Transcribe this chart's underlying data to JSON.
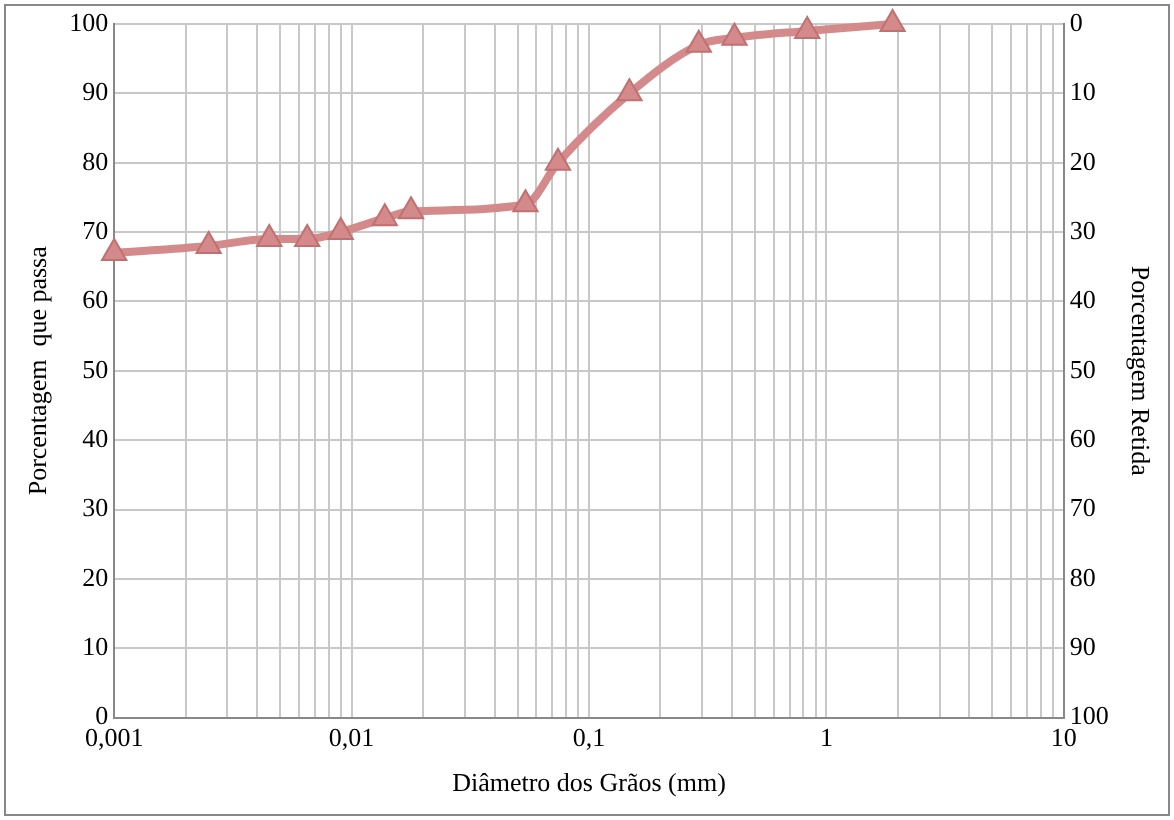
{
  "chart_data": {
    "type": "line",
    "xlabel": "Diâmetro dos Grãos (mm)",
    "ylabel": "Porcentagem  que passa",
    "y2label": "Porcentagem Retida",
    "x": [
      0.001,
      0.0025,
      0.0045,
      0.0065,
      0.009,
      0.0138,
      0.0178,
      0.054,
      0.074,
      0.148,
      0.29,
      0.41,
      0.83,
      1.9
    ],
    "series": [
      {
        "color": "#d48a8a",
        "values": [
          67,
          68,
          69,
          69,
          70,
          72,
          73,
          74,
          80,
          90,
          97,
          98,
          99,
          100
        ]
      }
    ],
    "log": "x",
    "xlim": [
      0.001,
      10
    ],
    "xticks": [
      {
        "value": 0.001,
        "label": "0,001"
      },
      {
        "value": 0.002,
        "label": null
      },
      {
        "value": 0.003,
        "label": null
      },
      {
        "value": 0.004,
        "label": null
      },
      {
        "value": 0.005,
        "label": null
      },
      {
        "value": 0.006,
        "label": null
      },
      {
        "value": 0.007,
        "label": null
      },
      {
        "value": 0.008,
        "label": null
      },
      {
        "value": 0.009,
        "label": null
      },
      {
        "value": 0.01,
        "label": "0,01"
      },
      {
        "value": 0.02,
        "label": null
      },
      {
        "value": 0.03,
        "label": null
      },
      {
        "value": 0.04,
        "label": null
      },
      {
        "value": 0.05,
        "label": null
      },
      {
        "value": 0.06,
        "label": null
      },
      {
        "value": 0.07,
        "label": null
      },
      {
        "value": 0.08,
        "label": null
      },
      {
        "value": 0.09,
        "label": null
      },
      {
        "value": 0.1,
        "label": "0,1"
      },
      {
        "value": 0.2,
        "label": null
      },
      {
        "value": 0.3,
        "label": null
      },
      {
        "value": 0.4,
        "label": null
      },
      {
        "value": 0.5,
        "label": null
      },
      {
        "value": 0.6,
        "label": null
      },
      {
        "value": 0.7,
        "label": null
      },
      {
        "value": 0.8,
        "label": null
      },
      {
        "value": 0.9,
        "label": null
      },
      {
        "value": 1,
        "label": "1"
      },
      {
        "value": 2,
        "label": null
      },
      {
        "value": 3,
        "label": null
      },
      {
        "value": 4,
        "label": null
      },
      {
        "value": 5,
        "label": null
      },
      {
        "value": 6,
        "label": null
      },
      {
        "value": 7,
        "label": null
      },
      {
        "value": 8,
        "label": null
      },
      {
        "value": 9,
        "label": null
      },
      {
        "value": 10,
        "label": "10"
      }
    ],
    "ylim": [
      0,
      100
    ],
    "yticks": [
      0,
      10,
      20,
      30,
      40,
      50,
      60,
      70,
      80,
      90,
      100
    ],
    "y2lim": [
      100,
      0
    ],
    "y2ticks": [
      0,
      10,
      20,
      30,
      40,
      50,
      60,
      70,
      80,
      90,
      100
    ],
    "grid": true,
    "legend": false,
    "marker": "triangle",
    "line_style": "solid"
  }
}
